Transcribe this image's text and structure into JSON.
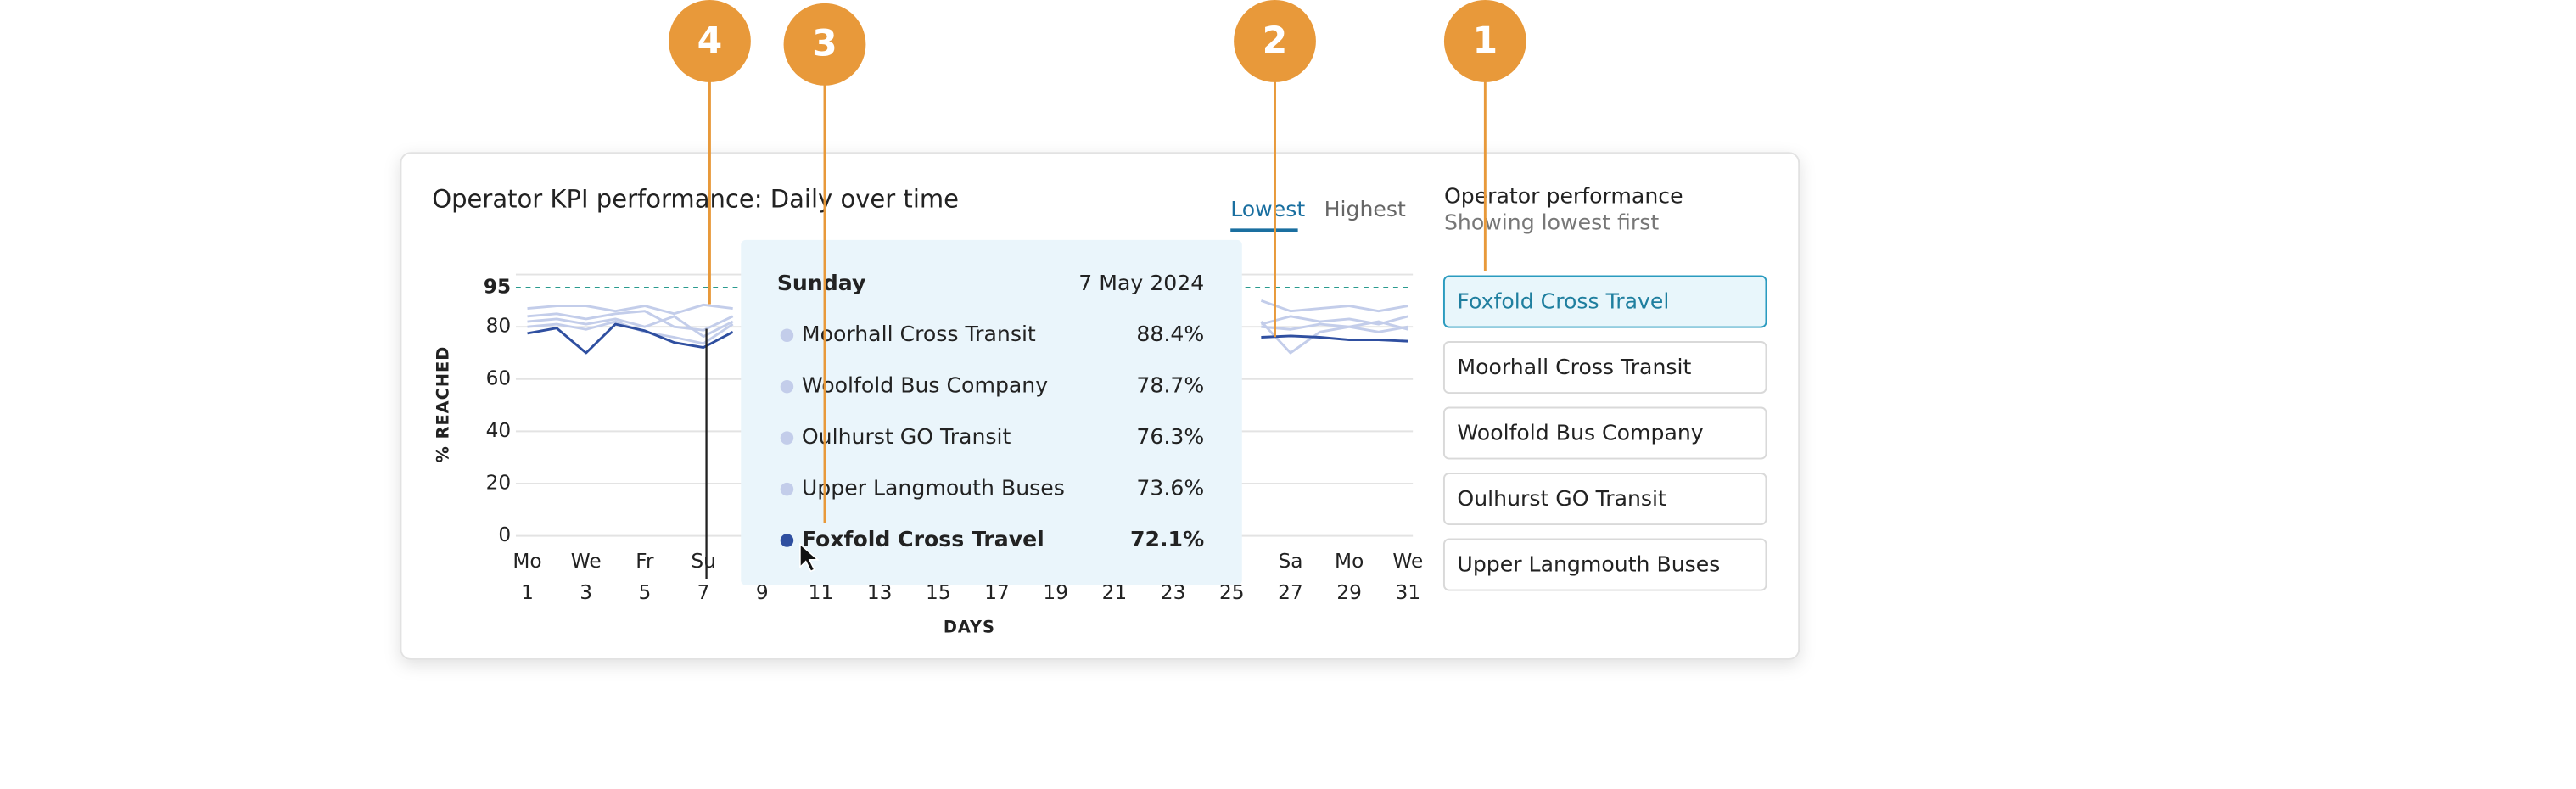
{
  "callouts": [
    "4",
    "3",
    "2",
    "1"
  ],
  "card": {
    "tabs": [
      "Lowest",
      "Highest"
    ],
    "panel_title": "Operator performance",
    "panel_subtitle": "Showing lowest first",
    "operator_list": [
      "Foxfold Cross Travel",
      "Moorhall Cross Transit",
      "Woolfold Bus Company",
      "Oulhurst GO Transit",
      "Upper Langmouth Buses"
    ]
  },
  "tooltip": {
    "weekday": "Sunday",
    "date": "7 May 2024",
    "values": [
      "88.4%",
      "78.7%",
      "76.3%",
      "73.6%",
      "72.1%"
    ]
  },
  "chart_data": {
    "type": "line",
    "title": "Operator KPI performance: Daily over time",
    "x_label": "DAYS",
    "y_label": "% REACHED",
    "x": [
      1,
      2,
      3,
      4,
      5,
      6,
      7,
      8,
      9,
      10,
      11,
      12,
      13,
      14,
      15,
      16,
      17,
      18,
      19,
      20,
      21,
      22,
      23,
      24,
      25,
      26,
      27,
      28,
      29,
      30,
      31
    ],
    "xlim": [
      1,
      31
    ],
    "xticks": [
      1,
      3,
      5,
      7,
      9,
      11,
      13,
      15,
      17,
      19,
      21,
      23,
      25,
      27,
      29,
      31
    ],
    "xtick_weekdays": [
      "Mo",
      "We",
      "Fr",
      "Su",
      null,
      null,
      null,
      null,
      null,
      null,
      null,
      null,
      null,
      "Sa",
      "Mo",
      "We"
    ],
    "ylim": [
      0,
      100
    ],
    "yticks": [
      0,
      20,
      40,
      60,
      80,
      95
    ],
    "threshold": 95,
    "threshold_color": "#2a9b8f",
    "grid": true,
    "series": [
      {
        "name": "Moorhall Cross Transit",
        "color": "#c3cdea",
        "values": [
          87,
          88,
          88,
          86,
          88,
          85,
          88.4,
          87,
          null,
          null,
          null,
          null,
          null,
          null,
          null,
          null,
          null,
          null,
          null,
          null,
          null,
          null,
          null,
          null,
          null,
          90,
          86,
          87,
          88,
          86,
          88
        ]
      },
      {
        "name": "Woolfold Bus Company",
        "color": "#c3cdea",
        "values": [
          84,
          85,
          83,
          85,
          86,
          80,
          78.7,
          84,
          null,
          null,
          null,
          null,
          null,
          null,
          null,
          null,
          null,
          null,
          null,
          null,
          null,
          null,
          null,
          null,
          null,
          82,
          70,
          78,
          80,
          82,
          79
        ]
      },
      {
        "name": "Oulhurst GO Transit",
        "color": "#c3cdea",
        "values": [
          82,
          83,
          81,
          83,
          80,
          84,
          76.3,
          82,
          null,
          null,
          null,
          null,
          null,
          null,
          null,
          null,
          null,
          null,
          null,
          null,
          null,
          null,
          null,
          null,
          null,
          81,
          84,
          82,
          83,
          81,
          84
        ]
      },
      {
        "name": "Upper Langmouth Buses",
        "color": "#c3cdea",
        "values": [
          80,
          81,
          79,
          82,
          78,
          76,
          73.6,
          81,
          null,
          null,
          null,
          null,
          null,
          null,
          null,
          null,
          null,
          null,
          null,
          null,
          null,
          null,
          null,
          null,
          null,
          80,
          79,
          81,
          80,
          78,
          80
        ]
      },
      {
        "name": "Foxfold Cross Travel",
        "color": "#2f4fa0",
        "values": [
          77.5,
          79.5,
          70,
          81,
          78.5,
          74,
          72.1,
          78,
          null,
          null,
          null,
          null,
          null,
          null,
          null,
          null,
          null,
          null,
          null,
          null,
          null,
          null,
          null,
          null,
          null,
          76,
          76.5,
          76,
          75,
          75,
          74.5
        ]
      }
    ]
  }
}
